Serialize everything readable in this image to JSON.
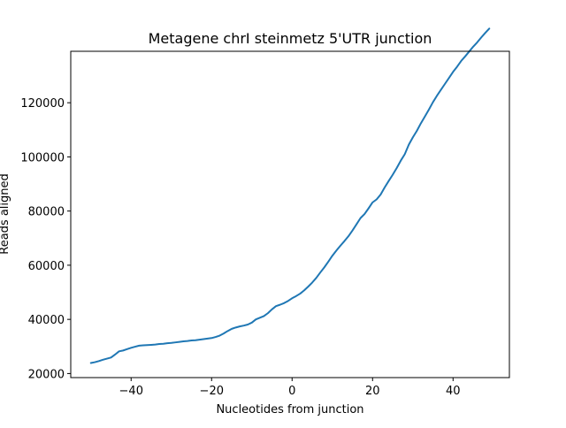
{
  "chart_data": {
    "type": "line",
    "title": "Metagene chrI steinmetz 5'UTR junction",
    "xlabel": "Nucleotides from junction",
    "ylabel": "Reads aligned",
    "xlim": [
      -55,
      54
    ],
    "ylim": [
      18500,
      139000
    ],
    "xticks": [
      -40,
      -20,
      0,
      20,
      40
    ],
    "xtick_labels": [
      "−40",
      "−20",
      "0",
      "20",
      "40"
    ],
    "yticks": [
      20000,
      40000,
      60000,
      80000,
      100000,
      120000
    ],
    "ytick_labels": [
      "20000",
      "40000",
      "60000",
      "80000",
      "100000",
      "120000"
    ],
    "grid": false,
    "legend": "none",
    "series": [
      {
        "color": "#1f77b4",
        "x": [
          -50,
          -49,
          -48,
          -47,
          -46,
          -45,
          -44,
          -43,
          -42,
          -41,
          -40,
          -39,
          -38,
          -37,
          -36,
          -35,
          -34,
          -33,
          -32,
          -31,
          -30,
          -29,
          -28,
          -27,
          -26,
          -25,
          -24,
          -23,
          -22,
          -21,
          -20,
          -19,
          -18,
          -17,
          -16,
          -15,
          -14,
          -13,
          -12,
          -11,
          -10,
          -9,
          -8,
          -7,
          -6,
          -5,
          -4,
          -3,
          -2,
          -1,
          0,
          1,
          2,
          3,
          4,
          5,
          6,
          7,
          8,
          9,
          10,
          11,
          12,
          13,
          14,
          15,
          16,
          17,
          18,
          19,
          20,
          21,
          22,
          23,
          24,
          25,
          26,
          27,
          28,
          29,
          30,
          31,
          32,
          33,
          34,
          35,
          36,
          37,
          38,
          39,
          40,
          41,
          42,
          43,
          44,
          45,
          46,
          47,
          48,
          49
        ],
        "y": [
          23900,
          24200,
          24600,
          25100,
          25500,
          25900,
          27000,
          28200,
          28500,
          29000,
          29500,
          29900,
          30300,
          30400,
          30500,
          30600,
          30700,
          30900,
          31000,
          31200,
          31300,
          31500,
          31700,
          31900,
          32000,
          32200,
          32300,
          32500,
          32700,
          32900,
          33100,
          33500,
          34000,
          34800,
          35700,
          36500,
          37000,
          37400,
          37700,
          38100,
          38800,
          40000,
          40600,
          41200,
          42300,
          43700,
          44900,
          45400,
          46000,
          46800,
          47800,
          48600,
          49500,
          50700,
          52100,
          53600,
          55300,
          57300,
          59200,
          61300,
          63500,
          65400,
          67200,
          68900,
          70700,
          72800,
          75100,
          77400,
          78900,
          81000,
          83200,
          84300,
          86100,
          88700,
          91100,
          93400,
          95900,
          98600,
          101000,
          104500,
          107200,
          109600,
          112400,
          114900,
          117500,
          120200,
          122600,
          124800,
          127000,
          129200,
          131400,
          133300,
          135400,
          137100,
          138900,
          140700,
          142300,
          144100,
          145800,
          147400
        ]
      }
    ]
  }
}
